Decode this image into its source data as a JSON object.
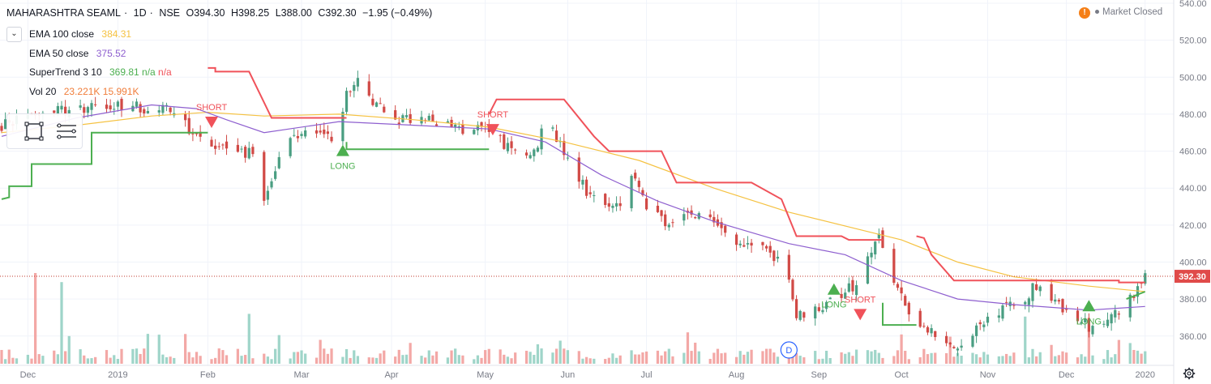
{
  "header": {
    "symbol": "MAHARASHTRA SEAML",
    "interval": "1D",
    "exchange": "NSE",
    "open": "O394.30",
    "high": "H398.25",
    "low": "L388.00",
    "close": "C392.30",
    "change": "−1.95 (−0.49%)"
  },
  "legend": {
    "ema100": {
      "label": "EMA 100 close",
      "value": "384.31",
      "color": "#f5c242"
    },
    "ema50": {
      "label": "EMA 50 close",
      "value": "375.52",
      "color": "#8e5fcf"
    },
    "supertrend": {
      "label": "SuperTrend 3 10",
      "value": "369.81",
      "na1": "n/a",
      "na2": "n/a",
      "color": "#4caf50"
    },
    "vol": {
      "label": "Vol 20",
      "value1": "23.221K",
      "value2": "15.991K",
      "color": "#f07d3a"
    }
  },
  "status": {
    "market": "Market Closed"
  },
  "colors": {
    "up": "#4a9e82",
    "down": "#d14a46",
    "upVol": "#9fd5c9",
    "downVol": "#f3a8a6",
    "ema100": "#f5c242",
    "ema50": "#8e5fcf",
    "stUp": "#4caf50",
    "stDown": "#f0525a",
    "priceLine": "#c0392b",
    "priceTag": "#e04b4a",
    "axisText": "#787b86",
    "grid": "#f0f3fa"
  },
  "icons": [
    "chevron-down-icon",
    "rectangle-tool-icon",
    "lines-tool-icon",
    "warning-icon",
    "gear-icon",
    "dividend-icon"
  ],
  "chart_data": {
    "type": "candlestick",
    "ylim": [
      345,
      540
    ],
    "y_ticks": [
      360,
      380,
      400,
      420,
      440,
      460,
      480,
      500,
      520,
      540
    ],
    "y_tick_labels": [
      "360.00",
      "380.00",
      "400.00",
      "420.00",
      "440.00",
      "460.00",
      "480.00",
      "500.00",
      "520.00",
      "540.00"
    ],
    "x_ticks": [
      "Dec",
      "2019",
      "Feb",
      "Mar",
      "Apr",
      "May",
      "Jun",
      "Jul",
      "Aug",
      "Sep",
      "Oct",
      "Nov",
      "Dec",
      "2020"
    ],
    "x_tick_days": [
      7,
      31,
      55,
      80,
      104,
      129,
      151,
      172,
      196,
      218,
      240,
      263,
      284,
      305
    ],
    "last_price": "392.30",
    "last_value": 392.3,
    "close_trend": [
      [
        0,
        473
      ],
      [
        10,
        482
      ],
      [
        20,
        482
      ],
      [
        31,
        486
      ],
      [
        43,
        482
      ],
      [
        48,
        484
      ],
      [
        50,
        472
      ],
      [
        55,
        464
      ],
      [
        62,
        462
      ],
      [
        68,
        457
      ],
      [
        70,
        433
      ],
      [
        74,
        457
      ],
      [
        78,
        466
      ],
      [
        84,
        473
      ],
      [
        89,
        464
      ],
      [
        92,
        490
      ],
      [
        95,
        500
      ],
      [
        100,
        484
      ],
      [
        104,
        478
      ],
      [
        110,
        478
      ],
      [
        120,
        474
      ],
      [
        130,
        470
      ],
      [
        135,
        462
      ],
      [
        139,
        455
      ],
      [
        143,
        462
      ],
      [
        145,
        477
      ],
      [
        151,
        456
      ],
      [
        156,
        438
      ],
      [
        160,
        430
      ],
      [
        165,
        432
      ],
      [
        168,
        450
      ],
      [
        172,
        432
      ],
      [
        178,
        420
      ],
      [
        185,
        425
      ],
      [
        190,
        420
      ],
      [
        196,
        412
      ],
      [
        202,
        408
      ],
      [
        209,
        396
      ],
      [
        212,
        370
      ],
      [
        218,
        373
      ],
      [
        224,
        384
      ],
      [
        229,
        390
      ],
      [
        234,
        415
      ],
      [
        236,
        400
      ],
      [
        240,
        380
      ],
      [
        245,
        368
      ],
      [
        250,
        357
      ],
      [
        257,
        356
      ],
      [
        263,
        372
      ],
      [
        268,
        376
      ],
      [
        273,
        378
      ],
      [
        275,
        388
      ],
      [
        280,
        378
      ],
      [
        286,
        373
      ],
      [
        290,
        364
      ],
      [
        298,
        372
      ],
      [
        305,
        392
      ]
    ],
    "ema100_points": [
      [
        0,
        470
      ],
      [
        20,
        474
      ],
      [
        40,
        479
      ],
      [
        55,
        481
      ],
      [
        70,
        479
      ],
      [
        90,
        480
      ],
      [
        110,
        477
      ],
      [
        130,
        473
      ],
      [
        150,
        465
      ],
      [
        170,
        455
      ],
      [
        190,
        440
      ],
      [
        210,
        427
      ],
      [
        230,
        417
      ],
      [
        240,
        412
      ],
      [
        255,
        400
      ],
      [
        270,
        392
      ],
      [
        290,
        387
      ],
      [
        305,
        384
      ]
    ],
    "ema50_points": [
      [
        0,
        468
      ],
      [
        20,
        478
      ],
      [
        40,
        485
      ],
      [
        52,
        483
      ],
      [
        60,
        477
      ],
      [
        70,
        470
      ],
      [
        90,
        476
      ],
      [
        110,
        474
      ],
      [
        130,
        472
      ],
      [
        145,
        465
      ],
      [
        160,
        447
      ],
      [
        175,
        433
      ],
      [
        190,
        422
      ],
      [
        210,
        410
      ],
      [
        225,
        404
      ],
      [
        240,
        390
      ],
      [
        255,
        380
      ],
      [
        270,
        377
      ],
      [
        290,
        374
      ],
      [
        305,
        376
      ]
    ],
    "supertrend": [
      {
        "dir": "up",
        "points": [
          [
            0,
            434
          ],
          [
            2,
            435
          ],
          [
            2,
            441
          ],
          [
            8,
            441
          ],
          [
            8,
            453
          ],
          [
            24,
            453
          ],
          [
            24,
            470
          ],
          [
            55,
            470
          ]
        ]
      },
      {
        "dir": "down",
        "points": [
          [
            55,
            505
          ],
          [
            57,
            505
          ],
          [
            57,
            503
          ],
          [
            66,
            503
          ],
          [
            72,
            478
          ],
          [
            92,
            478
          ]
        ]
      },
      {
        "dir": "up",
        "points": [
          [
            92,
            465
          ],
          [
            92,
            461
          ],
          [
            130,
            461
          ]
        ]
      },
      {
        "dir": "down",
        "points": [
          [
            130,
            480
          ],
          [
            132,
            488
          ],
          [
            150,
            488
          ],
          [
            158,
            468
          ],
          [
            162,
            460
          ],
          [
            176,
            460
          ],
          [
            180,
            443
          ],
          [
            200,
            443
          ],
          [
            208,
            434
          ],
          [
            212,
            414
          ],
          [
            224,
            414
          ],
          [
            226,
            412
          ],
          [
            235,
            412
          ]
        ]
      },
      {
        "dir": "up",
        "points": [
          [
            235,
            378
          ],
          [
            235,
            366
          ],
          [
            244,
            366
          ]
        ]
      },
      {
        "dir": "down",
        "points": [
          [
            244,
            414
          ],
          [
            246,
            413
          ],
          [
            248,
            404
          ],
          [
            254,
            390
          ],
          [
            298,
            390
          ],
          [
            298,
            389
          ],
          [
            305,
            389
          ]
        ]
      },
      {
        "dir": "up",
        "points": [
          [
            300,
            380
          ],
          [
            305,
            384
          ]
        ]
      }
    ],
    "signals": [
      {
        "type": "short",
        "label": "SHORT",
        "day": 56,
        "value": 476
      },
      {
        "type": "long",
        "label": "LONG",
        "day": 91,
        "value": 460
      },
      {
        "type": "short",
        "label": "SHORT",
        "day": 131,
        "value": 472
      },
      {
        "type": "long",
        "label": "LONG",
        "day": 222,
        "value": 385
      },
      {
        "type": "short",
        "label": "SHORT",
        "day": 229,
        "value": 372
      },
      {
        "type": "long",
        "label": "LONG",
        "day": 290,
        "value": 376
      }
    ],
    "volume_spikes": [
      [
        9,
        1.0
      ],
      [
        16,
        0.9
      ],
      [
        66,
        0.55
      ],
      [
        273,
        0.52
      ],
      [
        290,
        0.35
      ]
    ],
    "dividend_day": 210
  }
}
